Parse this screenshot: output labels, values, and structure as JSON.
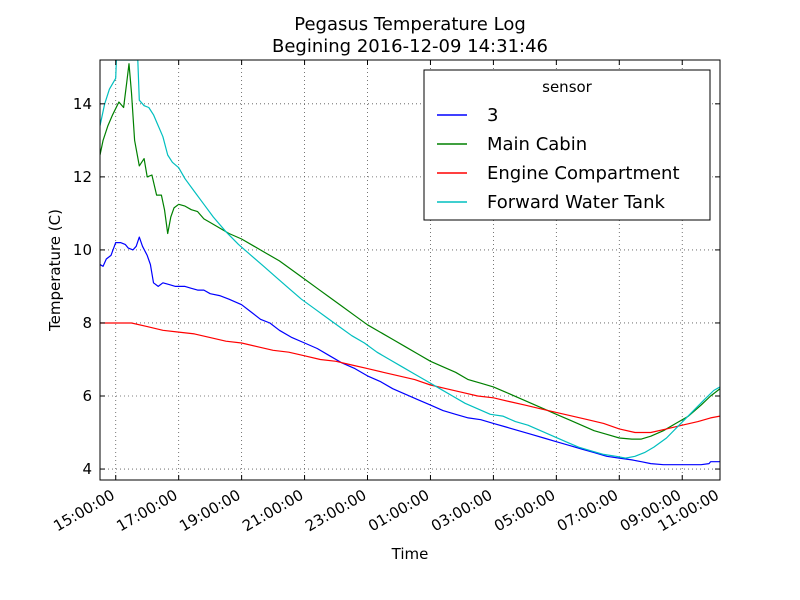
{
  "chart_data": {
    "type": "line",
    "title": "Pegasus Temperature Log",
    "subtitle": "Begining 2016-12-09 14:31:46",
    "xlabel": "Time",
    "ylabel": "Temperature (C)",
    "x_unit": "hour of day (hours continue past 24 into next day)",
    "xlim": [
      14.5,
      34.2
    ],
    "ylim": [
      3.7,
      15.2
    ],
    "x_tick_values": [
      15,
      17,
      19,
      21,
      23,
      25,
      27,
      29,
      31,
      33,
      35
    ],
    "x_tick_labels": [
      "15:00:00",
      "17:00:00",
      "19:00:00",
      "21:00:00",
      "23:00:00",
      "01:00:00",
      "03:00:00",
      "05:00:00",
      "07:00:00",
      "09:00:00",
      "11:00:00"
    ],
    "y_ticks": [
      4,
      6,
      8,
      10,
      12,
      14
    ],
    "grid": true,
    "legend_title": "sensor",
    "legend_position": "top-right",
    "series": [
      {
        "name": "3",
        "color": "#0000ff",
        "points": [
          [
            14.5,
            9.6
          ],
          [
            14.6,
            9.55
          ],
          [
            14.7,
            9.75
          ],
          [
            14.85,
            9.85
          ],
          [
            15,
            10.2
          ],
          [
            15.15,
            10.2
          ],
          [
            15.3,
            10.15
          ],
          [
            15.4,
            10.05
          ],
          [
            15.55,
            10.0
          ],
          [
            15.65,
            10.1
          ],
          [
            15.75,
            10.35
          ],
          [
            15.85,
            10.1
          ],
          [
            16.0,
            9.85
          ],
          [
            16.1,
            9.6
          ],
          [
            16.2,
            9.1
          ],
          [
            16.35,
            9.0
          ],
          [
            16.5,
            9.1
          ],
          [
            16.7,
            9.05
          ],
          [
            16.9,
            9.0
          ],
          [
            17.2,
            9.0
          ],
          [
            17.4,
            8.95
          ],
          [
            17.6,
            8.9
          ],
          [
            17.8,
            8.9
          ],
          [
            18.0,
            8.8
          ],
          [
            18.3,
            8.75
          ],
          [
            18.6,
            8.65
          ],
          [
            19.0,
            8.5
          ],
          [
            19.3,
            8.3
          ],
          [
            19.6,
            8.1
          ],
          [
            19.9,
            8.0
          ],
          [
            20.2,
            7.8
          ],
          [
            20.6,
            7.6
          ],
          [
            21.0,
            7.45
          ],
          [
            21.4,
            7.3
          ],
          [
            21.8,
            7.1
          ],
          [
            22.2,
            6.9
          ],
          [
            22.6,
            6.75
          ],
          [
            23.0,
            6.55
          ],
          [
            23.4,
            6.4
          ],
          [
            23.8,
            6.2
          ],
          [
            24.2,
            6.05
          ],
          [
            24.6,
            5.9
          ],
          [
            25.0,
            5.75
          ],
          [
            25.4,
            5.6
          ],
          [
            25.8,
            5.5
          ],
          [
            26.2,
            5.4
          ],
          [
            26.6,
            5.35
          ],
          [
            27.0,
            5.25
          ],
          [
            27.4,
            5.15
          ],
          [
            27.8,
            5.05
          ],
          [
            28.2,
            4.95
          ],
          [
            28.6,
            4.85
          ],
          [
            29.0,
            4.75
          ],
          [
            29.4,
            4.65
          ],
          [
            29.8,
            4.55
          ],
          [
            30.2,
            4.45
          ],
          [
            30.6,
            4.35
          ],
          [
            31.0,
            4.3
          ],
          [
            31.4,
            4.25
          ],
          [
            31.7,
            4.2
          ],
          [
            32.0,
            4.15
          ],
          [
            32.4,
            4.12
          ],
          [
            32.8,
            4.12
          ],
          [
            33.2,
            4.12
          ],
          [
            33.6,
            4.12
          ],
          [
            33.85,
            4.15
          ],
          [
            33.9,
            4.2
          ],
          [
            34.2,
            4.2
          ]
        ]
      },
      {
        "name": "Main Cabin",
        "color": "#008000",
        "points": [
          [
            14.5,
            12.6
          ],
          [
            14.6,
            13.0
          ],
          [
            14.75,
            13.4
          ],
          [
            14.9,
            13.7
          ],
          [
            15.1,
            14.05
          ],
          [
            15.25,
            13.9
          ],
          [
            15.35,
            14.6
          ],
          [
            15.42,
            15.1
          ],
          [
            15.5,
            14.3
          ],
          [
            15.6,
            13.0
          ],
          [
            15.75,
            12.3
          ],
          [
            15.9,
            12.5
          ],
          [
            16.0,
            12.0
          ],
          [
            16.15,
            12.05
          ],
          [
            16.3,
            11.5
          ],
          [
            16.45,
            11.5
          ],
          [
            16.55,
            11.1
          ],
          [
            16.65,
            10.45
          ],
          [
            16.75,
            10.9
          ],
          [
            16.85,
            11.15
          ],
          [
            17.0,
            11.25
          ],
          [
            17.2,
            11.2
          ],
          [
            17.4,
            11.1
          ],
          [
            17.6,
            11.05
          ],
          [
            17.8,
            10.85
          ],
          [
            18.0,
            10.75
          ],
          [
            18.3,
            10.6
          ],
          [
            18.6,
            10.45
          ],
          [
            19.0,
            10.3
          ],
          [
            19.4,
            10.1
          ],
          [
            19.8,
            9.9
          ],
          [
            20.2,
            9.7
          ],
          [
            20.6,
            9.45
          ],
          [
            21.0,
            9.2
          ],
          [
            21.4,
            8.95
          ],
          [
            21.8,
            8.7
          ],
          [
            22.2,
            8.45
          ],
          [
            22.6,
            8.2
          ],
          [
            23.0,
            7.95
          ],
          [
            23.4,
            7.75
          ],
          [
            23.8,
            7.55
          ],
          [
            24.2,
            7.35
          ],
          [
            24.6,
            7.15
          ],
          [
            25.0,
            6.95
          ],
          [
            25.4,
            6.8
          ],
          [
            25.8,
            6.65
          ],
          [
            26.2,
            6.45
          ],
          [
            26.6,
            6.35
          ],
          [
            27.0,
            6.25
          ],
          [
            27.4,
            6.1
          ],
          [
            27.8,
            5.95
          ],
          [
            28.2,
            5.8
          ],
          [
            28.6,
            5.65
          ],
          [
            29.0,
            5.5
          ],
          [
            29.4,
            5.35
          ],
          [
            29.8,
            5.2
          ],
          [
            30.2,
            5.05
          ],
          [
            30.6,
            4.95
          ],
          [
            31.0,
            4.85
          ],
          [
            31.4,
            4.82
          ],
          [
            31.7,
            4.82
          ],
          [
            32.0,
            4.9
          ],
          [
            32.4,
            5.05
          ],
          [
            32.8,
            5.25
          ],
          [
            33.2,
            5.45
          ],
          [
            33.6,
            5.75
          ],
          [
            33.9,
            6.0
          ],
          [
            34.2,
            6.2
          ]
        ]
      },
      {
        "name": "Engine Compartment",
        "color": "#ff0000",
        "points": [
          [
            14.5,
            8.0
          ],
          [
            15.0,
            8.0
          ],
          [
            15.5,
            8.0
          ],
          [
            16.0,
            7.9
          ],
          [
            16.5,
            7.8
          ],
          [
            17.0,
            7.75
          ],
          [
            17.5,
            7.7
          ],
          [
            18.0,
            7.6
          ],
          [
            18.5,
            7.5
          ],
          [
            19.0,
            7.45
          ],
          [
            19.5,
            7.35
          ],
          [
            20.0,
            7.25
          ],
          [
            20.5,
            7.2
          ],
          [
            21.0,
            7.1
          ],
          [
            21.5,
            7.0
          ],
          [
            22.0,
            6.95
          ],
          [
            22.5,
            6.85
          ],
          [
            23.0,
            6.75
          ],
          [
            23.5,
            6.65
          ],
          [
            24.0,
            6.55
          ],
          [
            24.5,
            6.45
          ],
          [
            25.0,
            6.3
          ],
          [
            25.5,
            6.2
          ],
          [
            26.0,
            6.1
          ],
          [
            26.5,
            6.0
          ],
          [
            27.0,
            5.95
          ],
          [
            27.5,
            5.85
          ],
          [
            28.0,
            5.75
          ],
          [
            28.5,
            5.65
          ],
          [
            29.0,
            5.55
          ],
          [
            29.5,
            5.45
          ],
          [
            30.0,
            5.35
          ],
          [
            30.5,
            5.25
          ],
          [
            31.0,
            5.1
          ],
          [
            31.5,
            5.0
          ],
          [
            32.0,
            5.0
          ],
          [
            32.5,
            5.1
          ],
          [
            33.0,
            5.2
          ],
          [
            33.5,
            5.3
          ],
          [
            33.9,
            5.4
          ],
          [
            34.2,
            5.45
          ]
        ]
      },
      {
        "name": "Forward Water Tank",
        "color": "#00bfbf",
        "points": [
          [
            14.5,
            13.4
          ],
          [
            14.65,
            14.0
          ],
          [
            14.8,
            14.4
          ],
          [
            15.0,
            14.7
          ],
          [
            15.02,
            15.2
          ],
          [
            15.7,
            15.2
          ],
          [
            15.75,
            14.1
          ],
          [
            15.9,
            13.95
          ],
          [
            16.05,
            13.9
          ],
          [
            16.2,
            13.7
          ],
          [
            16.35,
            13.4
          ],
          [
            16.5,
            13.1
          ],
          [
            16.65,
            12.6
          ],
          [
            16.8,
            12.4
          ],
          [
            17.0,
            12.25
          ],
          [
            17.2,
            11.95
          ],
          [
            17.5,
            11.6
          ],
          [
            17.8,
            11.25
          ],
          [
            18.1,
            10.9
          ],
          [
            18.5,
            10.5
          ],
          [
            18.9,
            10.15
          ],
          [
            19.3,
            9.85
          ],
          [
            19.7,
            9.55
          ],
          [
            20.1,
            9.25
          ],
          [
            20.5,
            8.95
          ],
          [
            20.9,
            8.65
          ],
          [
            21.3,
            8.4
          ],
          [
            21.7,
            8.15
          ],
          [
            22.1,
            7.9
          ],
          [
            22.5,
            7.65
          ],
          [
            22.9,
            7.45
          ],
          [
            23.3,
            7.2
          ],
          [
            23.7,
            7.0
          ],
          [
            24.1,
            6.8
          ],
          [
            24.5,
            6.6
          ],
          [
            24.9,
            6.4
          ],
          [
            25.3,
            6.2
          ],
          [
            25.7,
            6.0
          ],
          [
            26.1,
            5.8
          ],
          [
            26.5,
            5.65
          ],
          [
            26.9,
            5.5
          ],
          [
            27.3,
            5.45
          ],
          [
            27.7,
            5.3
          ],
          [
            28.1,
            5.2
          ],
          [
            28.5,
            5.05
          ],
          [
            28.9,
            4.9
          ],
          [
            29.3,
            4.75
          ],
          [
            29.7,
            4.6
          ],
          [
            30.1,
            4.5
          ],
          [
            30.5,
            4.4
          ],
          [
            30.9,
            4.35
          ],
          [
            31.2,
            4.3
          ],
          [
            31.5,
            4.35
          ],
          [
            31.8,
            4.45
          ],
          [
            32.1,
            4.6
          ],
          [
            32.5,
            4.85
          ],
          [
            32.9,
            5.2
          ],
          [
            33.3,
            5.55
          ],
          [
            33.7,
            5.9
          ],
          [
            34.0,
            6.15
          ],
          [
            34.2,
            6.25
          ]
        ]
      }
    ]
  }
}
